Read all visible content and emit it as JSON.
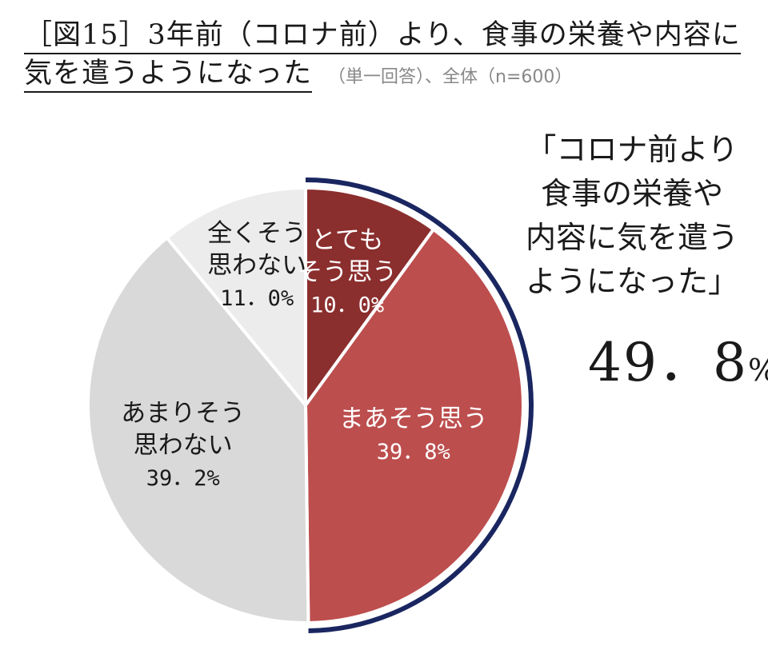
{
  "header": {
    "title_line1": "［図15］3年前（コロナ前）より、食事の栄養や内容に",
    "title_line2": "気を遣うようになった",
    "subtitle": "（単一回答）、全体（n=600）"
  },
  "callout": {
    "lines": [
      "「コロナ前より",
      "食事の栄養や",
      "内容に気を遣う",
      "ようになった」"
    ],
    "value": "49．8",
    "unit": "%"
  },
  "chart_data": {
    "type": "pie",
    "start_angle": "12 o'clock, clockwise",
    "slices": [
      {
        "label_lines": [
          "とても",
          "そう思う"
        ],
        "value": 10.0,
        "value_label": "10．0%",
        "color": "#8b2e2e",
        "text_color": "#ffffff"
      },
      {
        "label_lines": [
          "まあそう思う"
        ],
        "value": 39.8,
        "value_label": "39．8%",
        "color": "#bd4e4e",
        "text_color": "#ffffff"
      },
      {
        "label_lines": [
          "あまりそう",
          "思わない"
        ],
        "value": 39.2,
        "value_label": "39．2%",
        "color": "#d9d9d9",
        "text_color": "#1a1a1a"
      },
      {
        "label_lines": [
          "全くそう",
          "思わない"
        ],
        "value": 11.0,
        "value_label": "11．0%",
        "color": "#ececec",
        "text_color": "#1a1a1a"
      }
    ],
    "highlight_arc": {
      "covers": "first two slices",
      "color": "#1a2660"
    }
  }
}
